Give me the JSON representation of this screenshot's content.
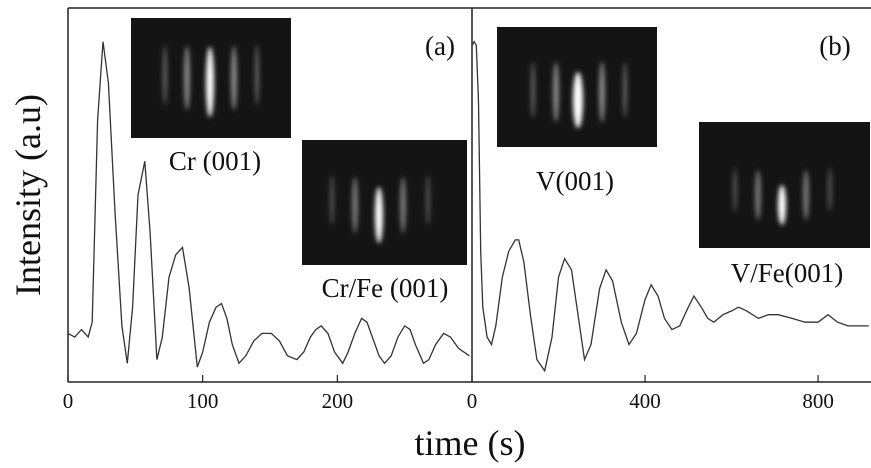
{
  "chart_data": [
    {
      "type": "line",
      "label": "(a)",
      "ylabel": "Intensity (a.u)",
      "xlabel": "time (s)",
      "annotations": [
        "Cr (001)",
        "Cr/Fe (001)"
      ],
      "xlim": [
        0,
        300
      ],
      "xticks": [
        0,
        100,
        200
      ],
      "ylim": [
        0,
        1
      ],
      "color": "#333333",
      "x": [
        0,
        5,
        10,
        15,
        18,
        22,
        26,
        30,
        35,
        40,
        44,
        48,
        52,
        57,
        61,
        66,
        70,
        75,
        80,
        85,
        90,
        96,
        100,
        105,
        110,
        114,
        118,
        122,
        127,
        132,
        138,
        144,
        151,
        157,
        163,
        170,
        175,
        180,
        184,
        188,
        193,
        198,
        204,
        208,
        213,
        218,
        222,
        227,
        231,
        235,
        240,
        245,
        250,
        254,
        258,
        264,
        268,
        273,
        279,
        284,
        290,
        298
      ],
      "values": [
        0.13,
        0.12,
        0.14,
        0.12,
        0.16,
        0.7,
        0.91,
        0.8,
        0.45,
        0.15,
        0.05,
        0.2,
        0.5,
        0.59,
        0.4,
        0.06,
        0.12,
        0.28,
        0.34,
        0.36,
        0.25,
        0.04,
        0.08,
        0.16,
        0.2,
        0.21,
        0.17,
        0.1,
        0.05,
        0.07,
        0.11,
        0.13,
        0.13,
        0.11,
        0.07,
        0.06,
        0.08,
        0.12,
        0.14,
        0.15,
        0.13,
        0.08,
        0.05,
        0.08,
        0.13,
        0.17,
        0.16,
        0.11,
        0.07,
        0.05,
        0.07,
        0.12,
        0.15,
        0.14,
        0.1,
        0.05,
        0.06,
        0.1,
        0.13,
        0.12,
        0.09,
        0.07
      ]
    },
    {
      "type": "line",
      "label": "(b)",
      "annotations": [
        "V(001)",
        "V/Fe(001)"
      ],
      "xlim": [
        0,
        920
      ],
      "xticks": [
        0,
        400,
        800
      ],
      "ylim": [
        0,
        1
      ],
      "color": "#333333",
      "x": [
        0,
        5,
        10,
        15,
        20,
        25,
        35,
        45,
        55,
        70,
        85,
        100,
        108,
        120,
        135,
        150,
        168,
        185,
        200,
        214,
        230,
        245,
        260,
        275,
        295,
        310,
        325,
        345,
        363,
        380,
        400,
        414,
        430,
        445,
        462,
        480,
        500,
        513,
        530,
        545,
        559,
        580,
        600,
        616,
        635,
        662,
        685,
        708,
        740,
        770,
        800,
        823,
        845,
        869,
        895,
        917
      ],
      "values": [
        0.9,
        0.91,
        0.9,
        0.75,
        0.35,
        0.2,
        0.12,
        0.1,
        0.15,
        0.28,
        0.35,
        0.38,
        0.38,
        0.32,
        0.18,
        0.06,
        0.03,
        0.12,
        0.28,
        0.33,
        0.3,
        0.18,
        0.06,
        0.1,
        0.25,
        0.3,
        0.27,
        0.16,
        0.1,
        0.13,
        0.22,
        0.26,
        0.23,
        0.17,
        0.14,
        0.15,
        0.2,
        0.23,
        0.2,
        0.17,
        0.16,
        0.18,
        0.19,
        0.2,
        0.19,
        0.17,
        0.18,
        0.18,
        0.17,
        0.16,
        0.16,
        0.18,
        0.16,
        0.15,
        0.15,
        0.15
      ]
    }
  ]
}
